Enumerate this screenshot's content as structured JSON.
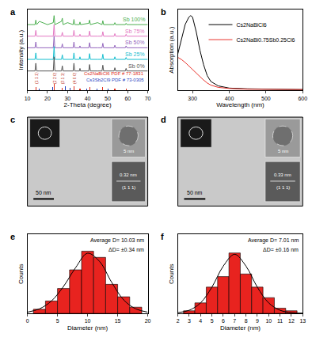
{
  "chart_data": [
    {
      "type": "line",
      "title": "a",
      "x_label": "2-Theta (degree)",
      "y_label": "Intensity (a.u.)",
      "xlim": [
        10,
        70
      ],
      "xticks": [
        10,
        20,
        30,
        40,
        50,
        60,
        70
      ],
      "ylim": [
        0,
        1.25
      ],
      "tick_labels": "x",
      "grid": false,
      "legend": "inline",
      "x": [
        10,
        13.8,
        14.2,
        14.6,
        16,
        20,
        22.9,
        23.3,
        23.7,
        27,
        27.4,
        27.8,
        30,
        32.8,
        33.2,
        33.6,
        35.9,
        36.2,
        36.5,
        40.6,
        41,
        41.4,
        45,
        47.2,
        47.6,
        48,
        53.2,
        53.6,
        54,
        58.8,
        59.2,
        59.6,
        65,
        70
      ],
      "series": [
        {
          "name": "Sb 100%",
          "color": "#4caf50",
          "type": "line",
          "values": [
            1.02,
            1.02,
            1.09,
            1.02,
            1.07,
            1.02,
            1.05,
            1.16,
            1.02,
            1.07,
            1.12,
            1.02,
            1.05,
            1.02,
            1.1,
            1.02,
            1.02,
            1.06,
            1.02,
            1.04,
            1.09,
            1.02,
            1.05,
            1.02,
            1.08,
            1.02,
            1.02,
            1.05,
            1.02,
            1.02,
            1.04,
            1.02,
            1.02,
            1.02
          ]
        },
        {
          "name": "Sb 75%",
          "color": "#e377c2",
          "type": "line",
          "values": [
            0.84,
            0.84,
            0.93,
            0.84,
            0.84,
            0.84,
            0.84,
            1.02,
            0.84,
            0.84,
            0.9,
            0.84,
            0.84,
            0.84,
            0.93,
            0.84,
            0.84,
            0.87,
            0.84,
            0.84,
            0.92,
            0.84,
            0.84,
            0.84,
            0.91,
            0.84,
            0.84,
            0.88,
            0.84,
            0.84,
            0.87,
            0.84,
            0.84,
            0.84
          ]
        },
        {
          "name": "Sb 50%",
          "color": "#9467bd",
          "type": "line",
          "values": [
            0.66,
            0.66,
            0.75,
            0.66,
            0.66,
            0.66,
            0.66,
            0.84,
            0.66,
            0.66,
            0.72,
            0.66,
            0.66,
            0.66,
            0.75,
            0.66,
            0.66,
            0.69,
            0.66,
            0.66,
            0.74,
            0.66,
            0.66,
            0.66,
            0.73,
            0.66,
            0.66,
            0.7,
            0.66,
            0.66,
            0.69,
            0.66,
            0.66,
            0.66
          ]
        },
        {
          "name": "Sb 25%",
          "color": "#17becf",
          "type": "line",
          "values": [
            0.48,
            0.48,
            0.58,
            0.48,
            0.48,
            0.48,
            0.48,
            0.68,
            0.48,
            0.48,
            0.55,
            0.48,
            0.48,
            0.48,
            0.58,
            0.48,
            0.48,
            0.52,
            0.48,
            0.48,
            0.57,
            0.48,
            0.48,
            0.48,
            0.56,
            0.48,
            0.48,
            0.52,
            0.48,
            0.48,
            0.51,
            0.48,
            0.48,
            0.48
          ]
        },
        {
          "name": "Sb 0%",
          "color": "#555555",
          "type": "line",
          "values": [
            0.3,
            0.3,
            0.42,
            0.3,
            0.3,
            0.3,
            0.3,
            0.52,
            0.3,
            0.3,
            0.38,
            0.3,
            0.3,
            0.3,
            0.42,
            0.3,
            0.3,
            0.34,
            0.3,
            0.3,
            0.4,
            0.3,
            0.3,
            0.3,
            0.39,
            0.3,
            0.3,
            0.35,
            0.3,
            0.3,
            0.34,
            0.3,
            0.3,
            0.3
          ]
        },
        {
          "name": "Cs2NaBiCl6 PDF # 77-1831",
          "color": "#e0301e",
          "type": "bar",
          "x": [
            14.2,
            23.3,
            27.4,
            33.2,
            36.2,
            41,
            47.6,
            53.6,
            59.2
          ],
          "values": [
            0.05,
            0.1,
            0.04,
            0.06,
            0.03,
            0.05,
            0.05,
            0.03,
            0.02
          ]
        },
        {
          "name": "Cs3Sb2Cl9 PDF # 73-0305",
          "color": "#1f3fbf",
          "type": "bar",
          "x": [
            15.8,
            22.6,
            28.8,
            31.2,
            39.6,
            44.8,
            50.3
          ],
          "values": [
            0.03,
            0.05,
            0.06,
            0.04,
            0.03,
            0.03,
            0.02
          ]
        }
      ],
      "annotations": [
        {
          "x": 14.2,
          "y": 0.19,
          "text": "(1 1 1)"
        },
        {
          "x": 23.3,
          "y": 0.19,
          "text": "(2 2 0)"
        },
        {
          "x": 27.4,
          "y": 0.19,
          "text": "(3 1 1)"
        },
        {
          "x": 33.2,
          "y": 0.19,
          "text": "(4 0 0)"
        }
      ]
    },
    {
      "type": "line",
      "title": "b",
      "x_label": "Wavelength (nm)",
      "y_label": "Absorption (a.u.)",
      "xlim": [
        260,
        600
      ],
      "xticks": [
        300,
        400,
        500,
        600
      ],
      "ylim": [
        0,
        1.1
      ],
      "tick_labels": "x",
      "grid": false,
      "legend": "top right",
      "x": [
        260,
        270,
        280,
        290,
        295,
        300,
        310,
        320,
        330,
        340,
        350,
        370,
        400,
        450,
        500,
        600
      ],
      "series": [
        {
          "name": "Cs2NaBiCl6",
          "color": "#000000",
          "values": [
            0.5,
            0.7,
            0.9,
            1.0,
            1.02,
            1.0,
            0.8,
            0.55,
            0.35,
            0.2,
            0.12,
            0.06,
            0.03,
            0.02,
            0.015,
            0.01
          ]
        },
        {
          "name": "Cs2NaBi0.75Sb0.25Cl6",
          "color": "#e8322b",
          "values": [
            0.45,
            0.42,
            0.38,
            0.33,
            0.31,
            0.29,
            0.24,
            0.19,
            0.14,
            0.1,
            0.07,
            0.04,
            0.025,
            0.015,
            0.012,
            0.01
          ]
        }
      ]
    },
    {
      "type": "image",
      "title": "c",
      "annotations": {
        "scale_bar": "50 nm",
        "inset_scale_bar": "5 nm",
        "lattice_spacing": "0.32 nm",
        "plane": "(1 1 1)"
      }
    },
    {
      "type": "image",
      "title": "d",
      "annotations": {
        "scale_bar": "50 nm",
        "inset_scale_bar": "5 nm",
        "lattice_spacing": "0.33 nm",
        "plane": "(1 1 1)"
      }
    },
    {
      "type": "histogram",
      "title": "e",
      "x_label": "Diameter (nm)",
      "y_label": "Counts",
      "xlim": [
        0,
        20
      ],
      "xticks": [
        0,
        5,
        10,
        15,
        20
      ],
      "ylim": [
        0,
        38
      ],
      "tick_labels": "x",
      "grid": false,
      "series": [
        {
          "type": "bar",
          "color": "#e8231f",
          "bins": [
            1,
            3,
            5,
            7,
            9,
            11,
            13,
            15,
            17,
            19
          ],
          "counts": [
            2,
            6,
            12,
            21,
            30,
            27,
            14,
            8,
            3
          ]
        },
        {
          "type": "line",
          "color": "#000000",
          "x": [
            0,
            2,
            4,
            6,
            8,
            10,
            12,
            14,
            16,
            18,
            20
          ],
          "values": [
            0.6,
            2.2,
            6,
            13,
            22,
            29,
            25,
            15,
            6.5,
            2.2,
            0.6
          ]
        }
      ],
      "annotations": [
        "Average D= 10.03 nm",
        "ΔD= ±0.34 nm"
      ]
    },
    {
      "type": "histogram",
      "title": "f",
      "x_label": "Diameter (nm)",
      "y_label": "Counts",
      "xlim": [
        2,
        13
      ],
      "xticks": [
        2,
        3,
        4,
        5,
        6,
        7,
        8,
        9,
        10,
        11,
        12,
        13
      ],
      "ylim": [
        0,
        30
      ],
      "tick_labels": "x",
      "grid": false,
      "series": [
        {
          "type": "bar",
          "color": "#e8231f",
          "bins": [
            2.5,
            3.5,
            4.5,
            5.5,
            6.5,
            7.5,
            8.5,
            9.5,
            10.5,
            11.5,
            12.5
          ],
          "counts": [
            1,
            4,
            10,
            14,
            23,
            15,
            10,
            6,
            2,
            1
          ]
        },
        {
          "type": "line",
          "color": "#000000",
          "x": [
            2,
            3,
            4,
            5,
            6,
            7,
            8,
            9,
            10,
            11,
            12,
            13
          ],
          "values": [
            0.3,
            1.2,
            4,
            10,
            18,
            22.5,
            18,
            10,
            4,
            1.2,
            0.3,
            0.1
          ]
        }
      ],
      "annotations": [
        "Average D= 7.01 nm",
        "ΔD= ±0.16 nm"
      ]
    }
  ]
}
